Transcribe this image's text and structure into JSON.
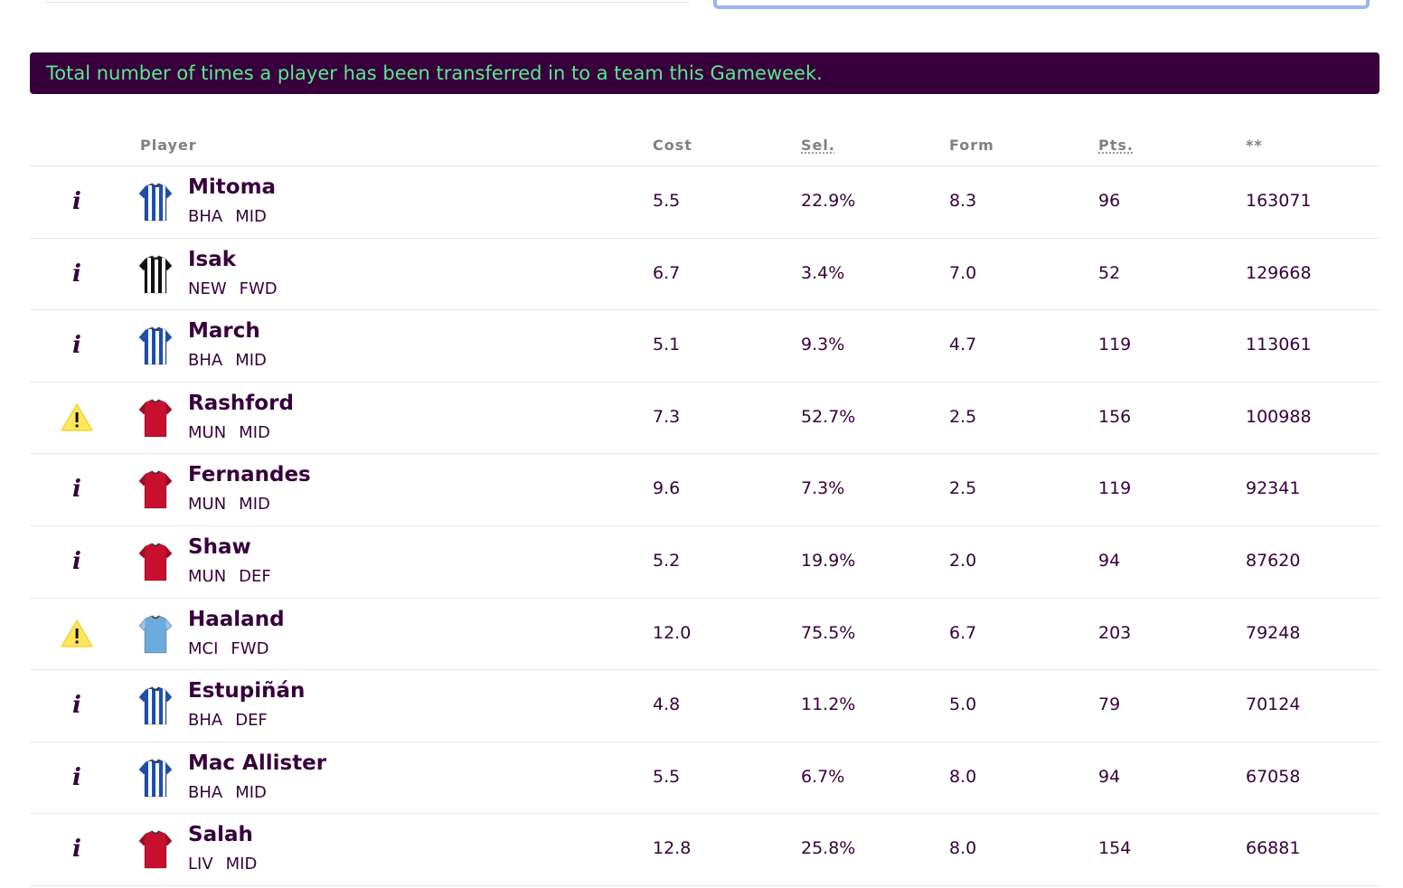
{
  "banner": {
    "text": "Total number of times a player has been transferred in to a team this Gameweek."
  },
  "table": {
    "headers": {
      "player": "Player",
      "cost": "Cost",
      "sel": "Sel.",
      "form": "Form",
      "pts": "Pts.",
      "transfers": "**"
    },
    "rows": [
      {
        "status": "info",
        "status_icon": "info-icon",
        "kit": "bha",
        "name": "Mitoma",
        "team": "BHA",
        "position": "MID",
        "cost": "5.5",
        "sel": "22.9%",
        "form": "8.3",
        "pts": "96",
        "transfers": "163071"
      },
      {
        "status": "info",
        "status_icon": "info-icon",
        "kit": "new",
        "name": "Isak",
        "team": "NEW",
        "position": "FWD",
        "cost": "6.7",
        "sel": "3.4%",
        "form": "7.0",
        "pts": "52",
        "transfers": "129668"
      },
      {
        "status": "info",
        "status_icon": "info-icon",
        "kit": "bha",
        "name": "March",
        "team": "BHA",
        "position": "MID",
        "cost": "5.1",
        "sel": "9.3%",
        "form": "4.7",
        "pts": "119",
        "transfers": "113061"
      },
      {
        "status": "warning",
        "status_icon": "warning-icon",
        "kit": "mun",
        "name": "Rashford",
        "team": "MUN",
        "position": "MID",
        "cost": "7.3",
        "sel": "52.7%",
        "form": "2.5",
        "pts": "156",
        "transfers": "100988"
      },
      {
        "status": "info",
        "status_icon": "info-icon",
        "kit": "mun",
        "name": "Fernandes",
        "team": "MUN",
        "position": "MID",
        "cost": "9.6",
        "sel": "7.3%",
        "form": "2.5",
        "pts": "119",
        "transfers": "92341"
      },
      {
        "status": "info",
        "status_icon": "info-icon",
        "kit": "mun",
        "name": "Shaw",
        "team": "MUN",
        "position": "DEF",
        "cost": "5.2",
        "sel": "19.9%",
        "form": "2.0",
        "pts": "94",
        "transfers": "87620"
      },
      {
        "status": "warning",
        "status_icon": "warning-icon",
        "kit": "mci",
        "name": "Haaland",
        "team": "MCI",
        "position": "FWD",
        "cost": "12.0",
        "sel": "75.5%",
        "form": "6.7",
        "pts": "203",
        "transfers": "79248"
      },
      {
        "status": "info",
        "status_icon": "info-icon",
        "kit": "bha",
        "name": "Estupiñán",
        "team": "BHA",
        "position": "DEF",
        "cost": "4.8",
        "sel": "11.2%",
        "form": "5.0",
        "pts": "79",
        "transfers": "70124"
      },
      {
        "status": "info",
        "status_icon": "info-icon",
        "kit": "bha",
        "name": "Mac Allister",
        "team": "BHA",
        "position": "MID",
        "cost": "5.5",
        "sel": "6.7%",
        "form": "8.0",
        "pts": "94",
        "transfers": "67058"
      },
      {
        "status": "info",
        "status_icon": "info-icon",
        "kit": "liv",
        "name": "Salah",
        "team": "LIV",
        "position": "MID",
        "cost": "12.8",
        "sel": "25.8%",
        "form": "8.0",
        "pts": "154",
        "transfers": "66881"
      }
    ]
  },
  "colors": {
    "brand": "#37003c",
    "banner_text": "#5ce88d",
    "warning": "#ffe65b",
    "kits": {
      "bha": {
        "primary": "#1b4fb0",
        "secondary": "#ffffff"
      },
      "new": {
        "primary": "#111111",
        "secondary": "#ffffff"
      },
      "mun": {
        "primary": "#c8102e",
        "secondary": "#a00d24"
      },
      "mci": {
        "primary": "#6cabdd",
        "secondary": "#98c5e9"
      },
      "liv": {
        "primary": "#c8102e",
        "secondary": "#a00d24"
      }
    }
  }
}
